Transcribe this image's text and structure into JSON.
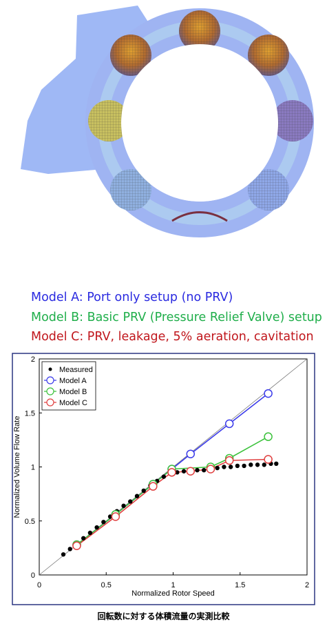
{
  "header_lines": [
    "Model A: Port only setup (no PRV)",
    "Model B: Basic PRV (Pressure Relief Valve) setup",
    "Model C: PRV, leakage, 5% aeration, cavitation"
  ],
  "caption": "回転数に対する体積流量の実測比較",
  "chart_data": {
    "type": "line",
    "x_label": "Normalized Rotor Speed",
    "y_label": "Normalized Volume Flow Rate",
    "xlim": [
      0,
      2
    ],
    "ylim": [
      0,
      2
    ],
    "xticks": [
      0,
      0.5,
      1,
      1.5,
      2
    ],
    "yticks": [
      0,
      0.5,
      1,
      1.5,
      2
    ],
    "reference_diagonal": true,
    "legend": "upper-left",
    "series": [
      {
        "name": "Measured",
        "color": "#000000",
        "marker": "dot",
        "x": [
          0.18,
          0.23,
          0.28,
          0.33,
          0.38,
          0.43,
          0.48,
          0.53,
          0.58,
          0.63,
          0.68,
          0.73,
          0.78,
          0.83,
          0.88,
          0.93,
          0.98,
          1.03,
          1.08,
          1.13,
          1.18,
          1.23,
          1.28,
          1.33,
          1.38,
          1.43,
          1.48,
          1.53,
          1.58,
          1.63,
          1.68,
          1.73,
          1.77
        ],
        "values": [
          0.19,
          0.24,
          0.29,
          0.34,
          0.39,
          0.44,
          0.49,
          0.54,
          0.59,
          0.64,
          0.68,
          0.73,
          0.78,
          0.83,
          0.87,
          0.91,
          0.94,
          0.95,
          0.96,
          0.96,
          0.97,
          0.97,
          0.98,
          0.99,
          1.0,
          1.0,
          1.01,
          1.01,
          1.02,
          1.02,
          1.02,
          1.03,
          1.03
        ]
      },
      {
        "name": "Model A",
        "color": "#3b3bea",
        "marker": "circle",
        "x": [
          0.28,
          0.57,
          0.85,
          0.99,
          1.13,
          1.42,
          1.71
        ],
        "values": [
          0.28,
          0.56,
          0.84,
          0.98,
          1.12,
          1.4,
          1.68
        ]
      },
      {
        "name": "Model B",
        "color": "#3cc23c",
        "marker": "circle",
        "x": [
          0.28,
          0.57,
          0.85,
          0.99,
          1.28,
          1.42,
          1.71
        ],
        "values": [
          0.28,
          0.56,
          0.84,
          0.98,
          1.0,
          1.08,
          1.28
        ]
      },
      {
        "name": "Model C",
        "color": "#e04040",
        "marker": "circle",
        "x": [
          0.28,
          0.57,
          0.85,
          0.99,
          1.13,
          1.28,
          1.42,
          1.71
        ],
        "values": [
          0.27,
          0.54,
          0.82,
          0.95,
          0.96,
          0.98,
          1.06,
          1.07
        ]
      }
    ]
  }
}
